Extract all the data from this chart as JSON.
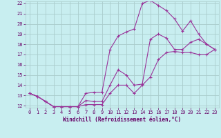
{
  "xlabel": "Windchill (Refroidissement éolien,°C)",
  "background_color": "#c8eef0",
  "grid_color": "#aacccc",
  "line_color": "#993399",
  "xlim": [
    -0.5,
    23.5
  ],
  "ylim": [
    11.8,
    22.2
  ],
  "yticks": [
    12,
    13,
    14,
    15,
    16,
    17,
    18,
    19,
    20,
    21,
    22
  ],
  "xticks": [
    0,
    1,
    2,
    3,
    4,
    5,
    6,
    7,
    8,
    9,
    10,
    11,
    12,
    13,
    14,
    15,
    16,
    17,
    18,
    19,
    20,
    21,
    22,
    23
  ],
  "line1_x": [
    0,
    1,
    2,
    3,
    4,
    5,
    6,
    7,
    8,
    9,
    10,
    11,
    12,
    13,
    14,
    15,
    16,
    17,
    18,
    19,
    20,
    21,
    22,
    23
  ],
  "line1_y": [
    13.2,
    12.9,
    12.4,
    11.9,
    11.9,
    11.9,
    11.9,
    12.5,
    12.4,
    12.4,
    14.0,
    15.5,
    15.0,
    14.0,
    14.1,
    18.5,
    19.0,
    18.6,
    17.5,
    17.5,
    18.2,
    18.5,
    18.0,
    17.5
  ],
  "line2_x": [
    0,
    1,
    2,
    3,
    4,
    5,
    6,
    7,
    8,
    9,
    10,
    11,
    12,
    13,
    14,
    15,
    16,
    17,
    18,
    19,
    20,
    21,
    22,
    23
  ],
  "line2_y": [
    13.2,
    12.9,
    12.4,
    11.9,
    11.9,
    11.9,
    11.9,
    13.2,
    13.3,
    13.3,
    17.5,
    18.8,
    19.2,
    19.5,
    22.0,
    22.3,
    21.8,
    21.3,
    20.5,
    19.3,
    20.3,
    19.0,
    18.0,
    17.5
  ],
  "line3_x": [
    0,
    1,
    2,
    3,
    4,
    5,
    6,
    7,
    8,
    9,
    10,
    11,
    12,
    13,
    14,
    15,
    16,
    17,
    18,
    19,
    20,
    21,
    22,
    23
  ],
  "line3_y": [
    13.2,
    12.9,
    12.4,
    11.9,
    11.9,
    11.9,
    11.9,
    12.1,
    12.1,
    12.1,
    13.2,
    14.0,
    14.0,
    13.2,
    14.0,
    14.8,
    16.5,
    17.2,
    17.3,
    17.2,
    17.2,
    17.0,
    17.0,
    17.5
  ],
  "tick_color": "#660066",
  "xlabel_fontsize": 5.5,
  "tick_fontsize": 5.0
}
